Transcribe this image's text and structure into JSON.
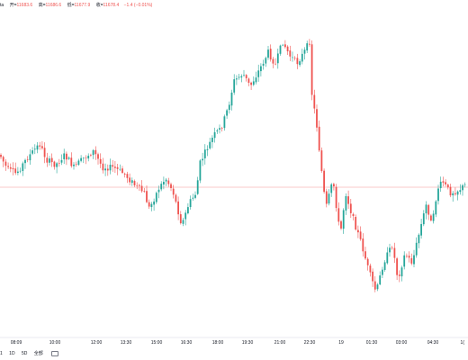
{
  "legend": {
    "cut_prefix": "ta",
    "open_label": "开=",
    "open_value": "11683.6",
    "high_label": "高=",
    "high_value": "11686.6",
    "low_label": "低=",
    "low_value": "11677.9",
    "close_label": "收=",
    "close_value": "11678.4",
    "change": "−1.4 (−0.01%)"
  },
  "timeframes": [
    "1",
    "1D",
    "5D",
    "全部"
  ],
  "chart_data": {
    "type": "candlestick",
    "x_tick_labels": [
      "08:09",
      "10:00",
      "12:00",
      "13:30",
      "15:00",
      "16:30",
      "18:00",
      "19:30",
      "21:00",
      "22:30",
      "19",
      "01:30",
      "03:00",
      "04:30",
      "1("
    ],
    "up_color": "#26a69a",
    "down_color": "#ef5350",
    "price_line_color": "#ef5350",
    "grid": false,
    "close_path": [
      [
        0,
        172
      ],
      [
        8,
        188
      ],
      [
        18,
        193
      ],
      [
        30,
        176
      ],
      [
        44,
        160
      ],
      [
        52,
        178
      ],
      [
        62,
        183
      ],
      [
        72,
        172
      ],
      [
        82,
        186
      ],
      [
        94,
        175
      ],
      [
        104,
        168
      ],
      [
        114,
        186
      ],
      [
        126,
        186
      ],
      [
        138,
        193
      ],
      [
        150,
        206
      ],
      [
        160,
        214
      ],
      [
        166,
        232
      ],
      [
        176,
        210
      ],
      [
        184,
        198
      ],
      [
        192,
        212
      ],
      [
        202,
        250
      ],
      [
        210,
        226
      ],
      [
        218,
        214
      ],
      [
        222,
        182
      ],
      [
        230,
        165
      ],
      [
        238,
        150
      ],
      [
        246,
        142
      ],
      [
        254,
        118
      ],
      [
        260,
        90
      ],
      [
        270,
        82
      ],
      [
        278,
        96
      ],
      [
        290,
        74
      ],
      [
        298,
        58
      ],
      [
        306,
        72
      ],
      [
        314,
        46
      ],
      [
        322,
        62
      ],
      [
        330,
        70
      ],
      [
        338,
        58
      ],
      [
        344,
        46
      ],
      [
        346,
        100
      ],
      [
        352,
        140
      ],
      [
        358,
        196
      ],
      [
        362,
        232
      ],
      [
        370,
        200
      ],
      [
        378,
        262
      ],
      [
        384,
        214
      ],
      [
        392,
        242
      ],
      [
        402,
        272
      ],
      [
        410,
        302
      ],
      [
        418,
        325
      ],
      [
        426,
        292
      ],
      [
        436,
        272
      ],
      [
        442,
        310
      ],
      [
        450,
        282
      ],
      [
        458,
        292
      ],
      [
        466,
        258
      ],
      [
        474,
        226
      ],
      [
        480,
        252
      ],
      [
        486,
        210
      ],
      [
        492,
        202
      ],
      [
        500,
        214
      ],
      [
        508,
        212
      ],
      [
        518,
        205
      ]
    ],
    "current_price_line_y": 208
  }
}
